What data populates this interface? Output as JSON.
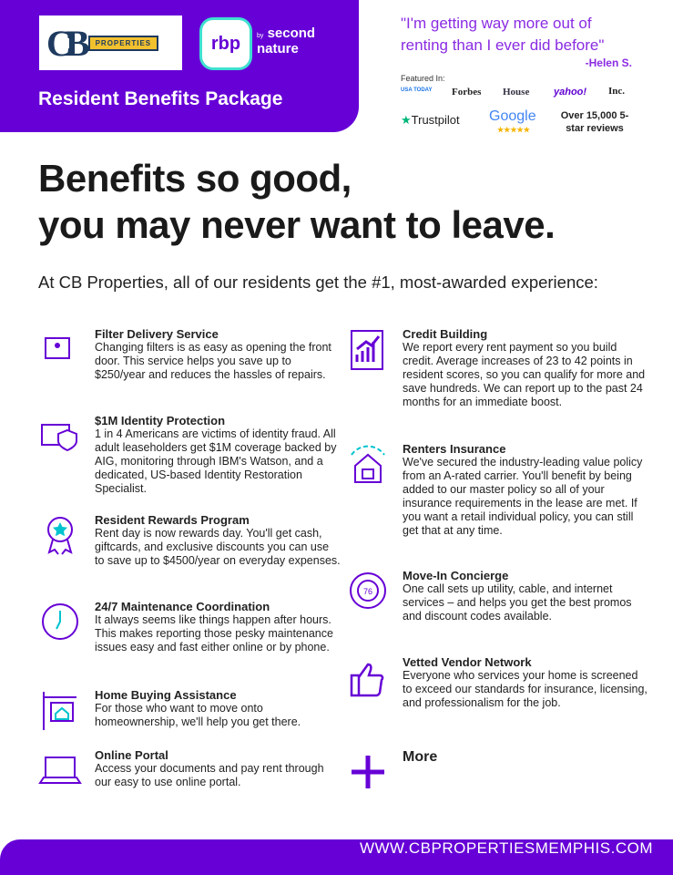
{
  "header": {
    "cb_logo_text": "PROPERTIES",
    "rbp_logo": "rbp",
    "second_nature_by": "by",
    "second_nature": "second nature",
    "title": "Resident Benefits Package"
  },
  "testimonial": {
    "quote": "\"I'm getting way more out of renting than I ever did before\"",
    "author": "-Helen S."
  },
  "featured": {
    "label": "Featured In:",
    "outlets": [
      "USA TODAY",
      "Forbes",
      "House",
      "yahoo!",
      "Inc."
    ],
    "trustpilot": "Trustpilot",
    "google": "Google",
    "google_stars": "★★★★★",
    "reviews": "Over 15,000 5-star reviews"
  },
  "headline": [
    "Benefits so good,",
    "you may never want to leave."
  ],
  "subheading": "At CB Properties, all of our residents get the #1, most-awarded experience:",
  "benefits_left": [
    {
      "title": "Filter Delivery Service",
      "body": "Changing filters is as easy as opening the front door. This service helps you save up to $250/year and reduces the hassles of repairs.",
      "icon": "filter-box-icon"
    },
    {
      "title": "$1M Identity Protection",
      "body": "1 in 4 Americans are victims of identity fraud. All adult leaseholders get $1M coverage backed by AIG, monitoring through IBM's Watson, and a dedicated, US-based Identity Restoration Specialist.",
      "icon": "id-shield-icon"
    },
    {
      "title": "Resident Rewards Program",
      "body": "Rent day is now rewards day. You'll get cash, giftcards, and exclusive discounts you can use to save up to $4500/year on everyday expenses.",
      "icon": "award-ribbon-icon"
    },
    {
      "title": "24/7 Maintenance Coordination",
      "body": "It always seems like things happen after hours. This makes reporting those pesky maintenance issues easy and fast either online or by phone.",
      "icon": "clock-icon"
    },
    {
      "title": "Home Buying Assistance",
      "body": "For those who want to move onto homeownership, we'll help you get there.",
      "icon": "house-sign-icon"
    },
    {
      "title": "Online Portal",
      "body": "Access your documents and pay rent through our easy to use online portal.",
      "icon": "laptop-icon"
    }
  ],
  "benefits_right": [
    {
      "title": "Credit Building",
      "body": "We report every rent payment so you build credit. Average increases of 23 to 42 points in resident scores, so you can qualify for more and save hundreds. We can report up to the past 24 months for an immediate boost.",
      "icon": "chart-up-icon"
    },
    {
      "title": "Renters Insurance",
      "body": "We've secured the industry-leading value policy from an A-rated carrier. You'll benefit by being added to our master policy so all of your insurance requirements in the lease are met. If you want a retail individual policy, you can still get that at any time.",
      "icon": "house-umbrella-icon"
    },
    {
      "title": "Move-In Concierge",
      "body": "One call sets up utility, cable, and internet services – and helps you get the best promos and discount codes available.",
      "icon": "thermostat-icon"
    },
    {
      "title": "Vetted Vendor Network",
      "body": "Everyone who services your home is screened to exceed our standards for insurance, licensing, and professionalism for the job.",
      "icon": "thumbs-up-icon"
    }
  ],
  "more_label": "More",
  "footer": {
    "url": "WWW.CBPROPERTIESMEMPHIS.COM"
  },
  "colors": {
    "brand_purple": "#6600d6",
    "quote_purple": "#8a2be2"
  }
}
